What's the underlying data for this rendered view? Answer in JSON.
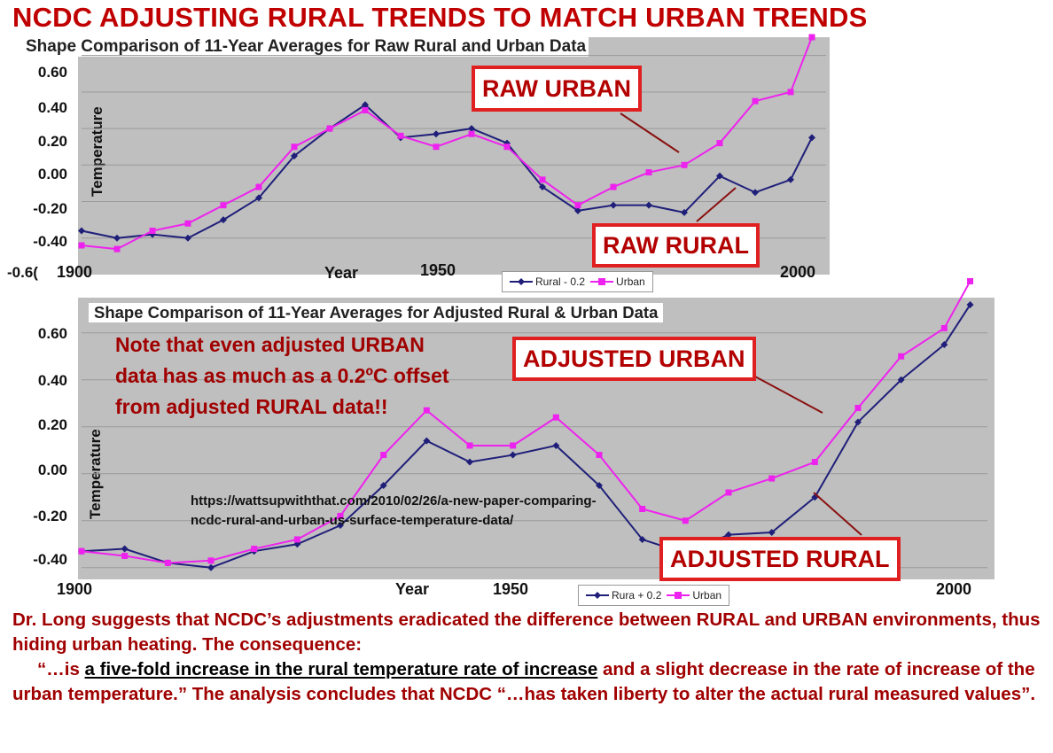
{
  "headline": "NCDC ADJUSTING RURAL TRENDS TO MATCH URBAN TRENDS",
  "colors": {
    "rural": "#1f1f7a",
    "urban": "#ee22ee",
    "callout_border": "#e02020",
    "plot_bg": "#bfbfbf",
    "headline": "#c00000"
  },
  "chart_data": [
    {
      "type": "line",
      "title": "Shape Comparison of 11-Year Averages for Raw Rural and Urban Data",
      "xlabel": "Year",
      "ylabel": "Temperature",
      "xlim": [
        1900,
        2005
      ],
      "ylim": [
        -0.6,
        0.7
      ],
      "x_tick_labels": [
        "1900",
        "1950",
        "2000"
      ],
      "y_tick_labels": [
        "0.60",
        "0.40",
        "0.20",
        "0.00",
        "-0.20",
        "-0.40",
        "-0.6("
      ],
      "grid": true,
      "legend": {
        "position": "bottom-center",
        "entries": [
          "Rural - 0.2",
          "Urban"
        ]
      },
      "annotations": [
        "RAW URBAN",
        "RAW RURAL"
      ],
      "x": [
        1900,
        1905,
        1910,
        1915,
        1920,
        1925,
        1930,
        1935,
        1940,
        1945,
        1950,
        1955,
        1960,
        1965,
        1970,
        1975,
        1980,
        1985,
        1990,
        1995,
        2000,
        2003
      ],
      "series": [
        {
          "name": "Rural - 0.2",
          "values": [
            -0.36,
            -0.4,
            -0.38,
            -0.4,
            -0.3,
            -0.18,
            0.05,
            0.2,
            0.33,
            0.15,
            0.17,
            0.2,
            0.12,
            -0.12,
            -0.25,
            -0.22,
            -0.22,
            -0.26,
            -0.06,
            -0.15,
            -0.08,
            0.15
          ]
        },
        {
          "name": "Urban",
          "values": [
            -0.44,
            -0.46,
            -0.36,
            -0.32,
            -0.22,
            -0.12,
            0.1,
            0.2,
            0.3,
            0.16,
            0.1,
            0.17,
            0.1,
            -0.08,
            -0.22,
            -0.12,
            -0.04,
            0.0,
            0.12,
            0.35,
            0.4,
            0.7
          ]
        }
      ]
    },
    {
      "type": "line",
      "title": "Shape Comparison of 11-Year Averages for Adjusted Rural & Urban Data",
      "xlabel": "Year",
      "ylabel": "Temperature",
      "xlim": [
        1900,
        2005
      ],
      "ylim": [
        -0.45,
        0.75
      ],
      "x_tick_labels": [
        "1900",
        "1950",
        "2000"
      ],
      "y_tick_labels": [
        "0.60",
        "0.40",
        "0.20",
        "0.00",
        "-0.20",
        "-0.40"
      ],
      "grid": true,
      "legend": {
        "position": "bottom-center",
        "entries": [
          "Rura + 0.2",
          "Urban"
        ]
      },
      "annotations": [
        "ADJUSTED URBAN",
        "ADJUSTED RURAL"
      ],
      "x": [
        1900,
        1905,
        1910,
        1915,
        1920,
        1925,
        1930,
        1935,
        1940,
        1945,
        1950,
        1955,
        1960,
        1965,
        1970,
        1975,
        1980,
        1985,
        1990,
        1995,
        2000,
        2003
      ],
      "series": [
        {
          "name": "Rura + 0.2",
          "values": [
            -0.33,
            -0.32,
            -0.38,
            -0.4,
            -0.33,
            -0.3,
            -0.22,
            -0.05,
            0.14,
            0.05,
            0.08,
            0.12,
            -0.05,
            -0.28,
            -0.34,
            -0.26,
            -0.25,
            -0.1,
            0.22,
            0.4,
            0.55,
            0.72
          ]
        },
        {
          "name": "Urban",
          "values": [
            -0.33,
            -0.35,
            -0.38,
            -0.37,
            -0.32,
            -0.28,
            -0.18,
            0.08,
            0.27,
            0.12,
            0.12,
            0.24,
            0.08,
            -0.15,
            -0.2,
            -0.08,
            -0.02,
            0.05,
            0.28,
            0.5,
            0.62,
            0.82
          ]
        }
      ]
    }
  ],
  "note": "Note that even adjusted URBAN data has as much as a 0.2ºC offset from adjusted RURAL data!!",
  "url": "https://wattsupwiththat.com/2010/02/26/a-new-paper-comparing-ncdc-rural-and-urban-us-surface-temperature-data/",
  "caption": {
    "part1": "Dr. Long suggests that NCDC’s adjustments eradicated the difference between RURAL and URBAN environments, thus hiding urban heating. The consequence:",
    "part2": "“…is ",
    "emphasis": "a five-fold increase in the rural temperature rate of increase",
    "part3": " and a slight decrease in the rate of increase of the urban temperature.” The analysis concludes that NCDC “…has taken liberty to alter the actual rural measured values”."
  }
}
